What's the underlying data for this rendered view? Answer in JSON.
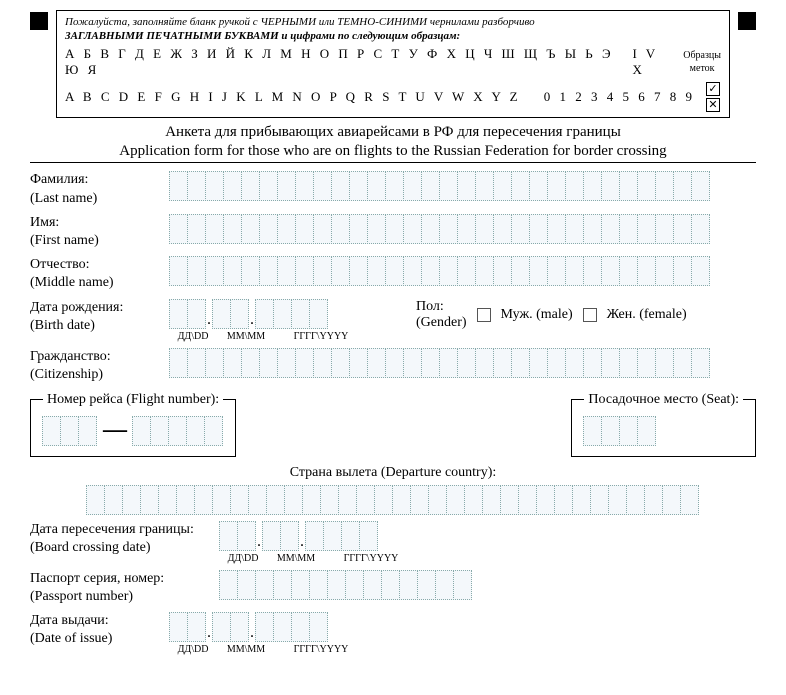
{
  "header": {
    "instruction_line1": "Пожалуйста, заполняйте бланк ручкой с ЧЕРНЫМИ или ТЕМНО-СИНИМИ чернилами разборчиво",
    "instruction_line2": "ЗАГЛАВНЫМИ ПЕЧАТНЫМИ БУКВАМИ и цифрами по следующим образцам:",
    "sample_ru": "А Б В Г Д Е Ж З И Й К Л М Н О П Р С Т У Ф Х Ц Ч Ш Щ Ъ Ы Ь Э Ю Я",
    "sample_en": "A B C D E F G H I J K L M N O P Q R S T U V W X Y Z",
    "sample_misc": "I V X",
    "sample_digits": "0 1 2 3 4 5 6 7 8 9",
    "marks_label": "Образцы\nметок",
    "mark1": "✓",
    "mark2": "✕"
  },
  "title_ru": "Анкета для прибывающих авиарейсами в РФ для пересечения границы",
  "title_en": "Application form for those who are on flights to the Russian Federation for border crossing",
  "fields": {
    "last_name_ru": "Фамилия:",
    "last_name_en": "(Last name)",
    "first_name_ru": "Имя:",
    "first_name_en": "(First name)",
    "middle_name_ru": "Отчество:",
    "middle_name_en": "(Middle name)",
    "birth_date_ru": "Дата рождения:",
    "birth_date_en": "(Birth date)",
    "dd": "ДД\\DD",
    "mm": "ММ\\MM",
    "yyyy": "ГГГГ\\YYYY",
    "gender_ru": "Пол:",
    "gender_en": "(Gender)",
    "male": "Муж. (male)",
    "female": "Жен. (female)",
    "citizenship_ru": "Гражданство:",
    "citizenship_en": "(Citizenship)",
    "flight_number": "Номер рейса (Flight number):",
    "seat": "Посадочное место (Seat):",
    "departure_country": "Страна вылета (Departure country):",
    "crossing_date_ru": "Дата пересечения границы:",
    "crossing_date_en": "(Board crossing date)",
    "passport_ru": "Паспорт серия, номер:",
    "passport_en": "(Passport number)",
    "issue_date_ru": "Дата выдачи:",
    "issue_date_en": "(Date of issue)"
  },
  "cell_counts": {
    "long_row": 30,
    "birth_dd": 2,
    "birth_mm": 2,
    "birth_yyyy": 4,
    "flight_a": 3,
    "flight_b": 5,
    "seat": 4,
    "departure": 34,
    "crossing_dd": 2,
    "crossing_mm": 2,
    "crossing_yyyy": 4,
    "passport": 14,
    "issue_dd": 2,
    "issue_mm": 2,
    "issue_yyyy": 4
  },
  "colors": {
    "cell_bg": "#f4f8fb",
    "cell_border": "#8aa"
  }
}
